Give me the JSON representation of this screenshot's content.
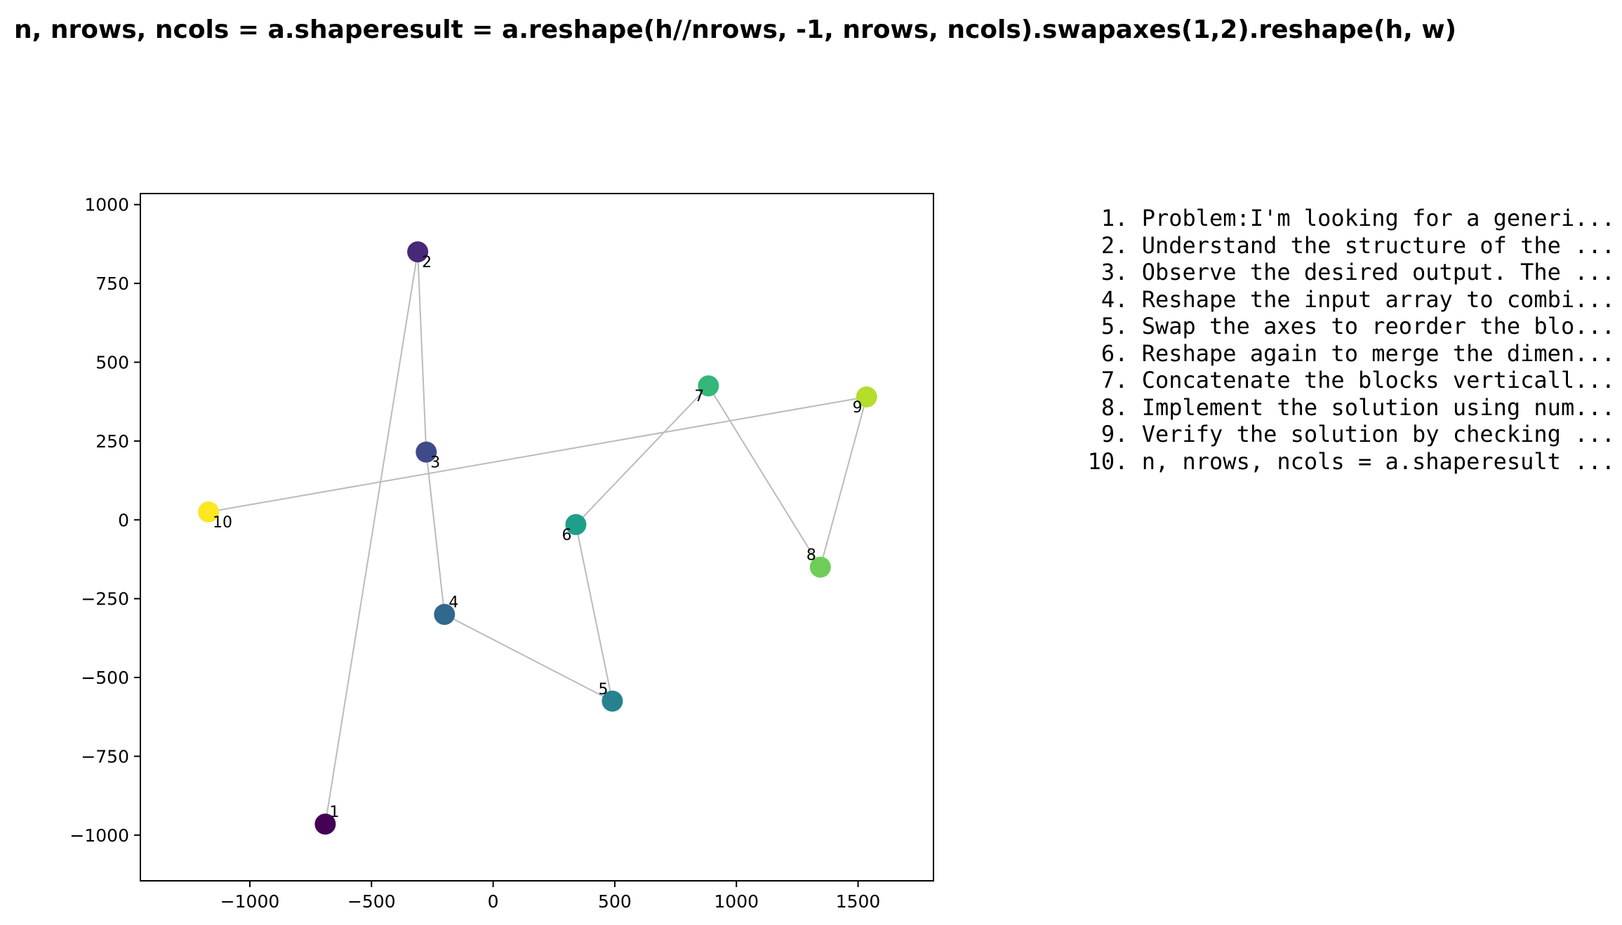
{
  "title": "n, nrows, ncols = a.shaperesult = a.reshape(h//nrows, -1, nrows, ncols).swapaxes(1,2).reshape(h, w)",
  "steps": [
    {
      "num": "1",
      "text": "Problem:I'm looking for a generi..."
    },
    {
      "num": "2",
      "text": "Understand the structure of the ..."
    },
    {
      "num": "3",
      "text": "Observe the desired output. The ..."
    },
    {
      "num": "4",
      "text": "Reshape the input array to combi..."
    },
    {
      "num": "5",
      "text": "Swap the axes to reorder the blo..."
    },
    {
      "num": "6",
      "text": "Reshape again to merge the dimen..."
    },
    {
      "num": "7",
      "text": "Concatenate the blocks verticall..."
    },
    {
      "num": "8",
      "text": "Implement the solution using num..."
    },
    {
      "num": "9",
      "text": "Verify the solution by checking ..."
    },
    {
      "num": "10",
      "text": "n, nrows, ncols = a.shaperesult ..."
    }
  ],
  "chart_data": {
    "type": "scatter",
    "title": "",
    "xlabel": "",
    "ylabel": "",
    "xlim": [
      -1450,
      1810
    ],
    "ylim": [
      -1145,
      1035
    ],
    "xticks": [
      -1000,
      -500,
      0,
      500,
      1000,
      1500
    ],
    "yticks": [
      -1000,
      -750,
      -500,
      -250,
      0,
      250,
      500,
      750,
      1000
    ],
    "xtick_labels": [
      "−1000",
      "−500",
      "0",
      "500",
      "1000",
      "1500"
    ],
    "ytick_labels": [
      "−1000",
      "−750",
      "−500",
      "−250",
      "0",
      "250",
      "500",
      "750",
      "1000"
    ],
    "grid": false,
    "connected": true,
    "line_color": "#bbbbbb",
    "points": [
      {
        "label": "1",
        "x": -690,
        "y": -965,
        "color": "#440154",
        "label_pos": "upper-right"
      },
      {
        "label": "2",
        "x": -310,
        "y": 850,
        "color": "#482878",
        "label_pos": "lower-right"
      },
      {
        "label": "3",
        "x": -275,
        "y": 215,
        "color": "#3e4a89",
        "label_pos": "lower-right"
      },
      {
        "label": "4",
        "x": -200,
        "y": -300,
        "color": "#31688e",
        "label_pos": "upper-right"
      },
      {
        "label": "5",
        "x": 490,
        "y": -575,
        "color": "#26828e",
        "label_pos": "upper-left"
      },
      {
        "label": "6",
        "x": 340,
        "y": -15,
        "color": "#1f9e89",
        "label_pos": "lower-left"
      },
      {
        "label": "7",
        "x": 885,
        "y": 425,
        "color": "#35b779",
        "label_pos": "lower-left"
      },
      {
        "label": "8",
        "x": 1345,
        "y": -150,
        "color": "#6ece58",
        "label_pos": "upper-left"
      },
      {
        "label": "9",
        "x": 1535,
        "y": 390,
        "color": "#b5de2b",
        "label_pos": "lower-left"
      },
      {
        "label": "10",
        "x": -1170,
        "y": 25,
        "color": "#fde725",
        "label_pos": "lower-right"
      }
    ]
  }
}
